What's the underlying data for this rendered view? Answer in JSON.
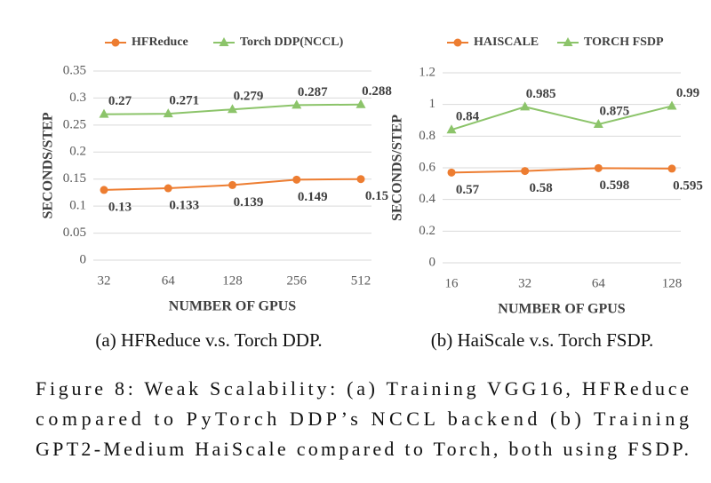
{
  "chart_data": [
    {
      "type": "line",
      "caption": "(a) HFReduce v.s. Torch DDP.",
      "xlabel": "NUMBER OF GPUS",
      "ylabel": "SECONDS/STEP",
      "categories": [
        "32",
        "64",
        "128",
        "256",
        "512"
      ],
      "series": [
        {
          "name": "HFReduce",
          "color": "#ed7d31",
          "marker": "circle",
          "values": [
            0.13,
            0.133,
            0.139,
            0.149,
            0.15
          ]
        },
        {
          "name": "Torch DDP(NCCL)",
          "color": "#8cc46a",
          "marker": "triangle",
          "values": [
            0.27,
            0.271,
            0.279,
            0.287,
            0.288
          ]
        }
      ],
      "ylim": [
        0,
        0.35
      ],
      "yticks": [
        0,
        0.05,
        0.1,
        0.15,
        0.2,
        0.25,
        0.3,
        0.35
      ],
      "grid": true,
      "legend": "top"
    },
    {
      "type": "line",
      "caption": "(b) HaiScale v.s. Torch FSDP.",
      "xlabel": "NUMBER OF GPUS",
      "ylabel": "SECONDS/STEP",
      "categories": [
        "16",
        "32",
        "64",
        "128"
      ],
      "series": [
        {
          "name": "HAISCALE",
          "color": "#ed7d31",
          "marker": "circle",
          "values": [
            0.57,
            0.58,
            0.598,
            0.595
          ]
        },
        {
          "name": "TORCH FSDP",
          "color": "#8cc46a",
          "marker": "triangle",
          "values": [
            0.84,
            0.985,
            0.875,
            0.99
          ]
        }
      ],
      "ylim": [
        0,
        1.2
      ],
      "yticks": [
        0,
        0.2,
        0.4,
        0.6,
        0.8,
        1,
        1.2
      ],
      "grid": true,
      "legend": "top"
    }
  ],
  "figure_caption": [
    "Figure 8: Weak Scalability: (a) Training VGG16, HFReduce",
    "compared to PyTorch DDP’s NCCL backend (b) Training",
    "GPT2-Medium HaiScale compared to Torch, both using FSDP."
  ]
}
